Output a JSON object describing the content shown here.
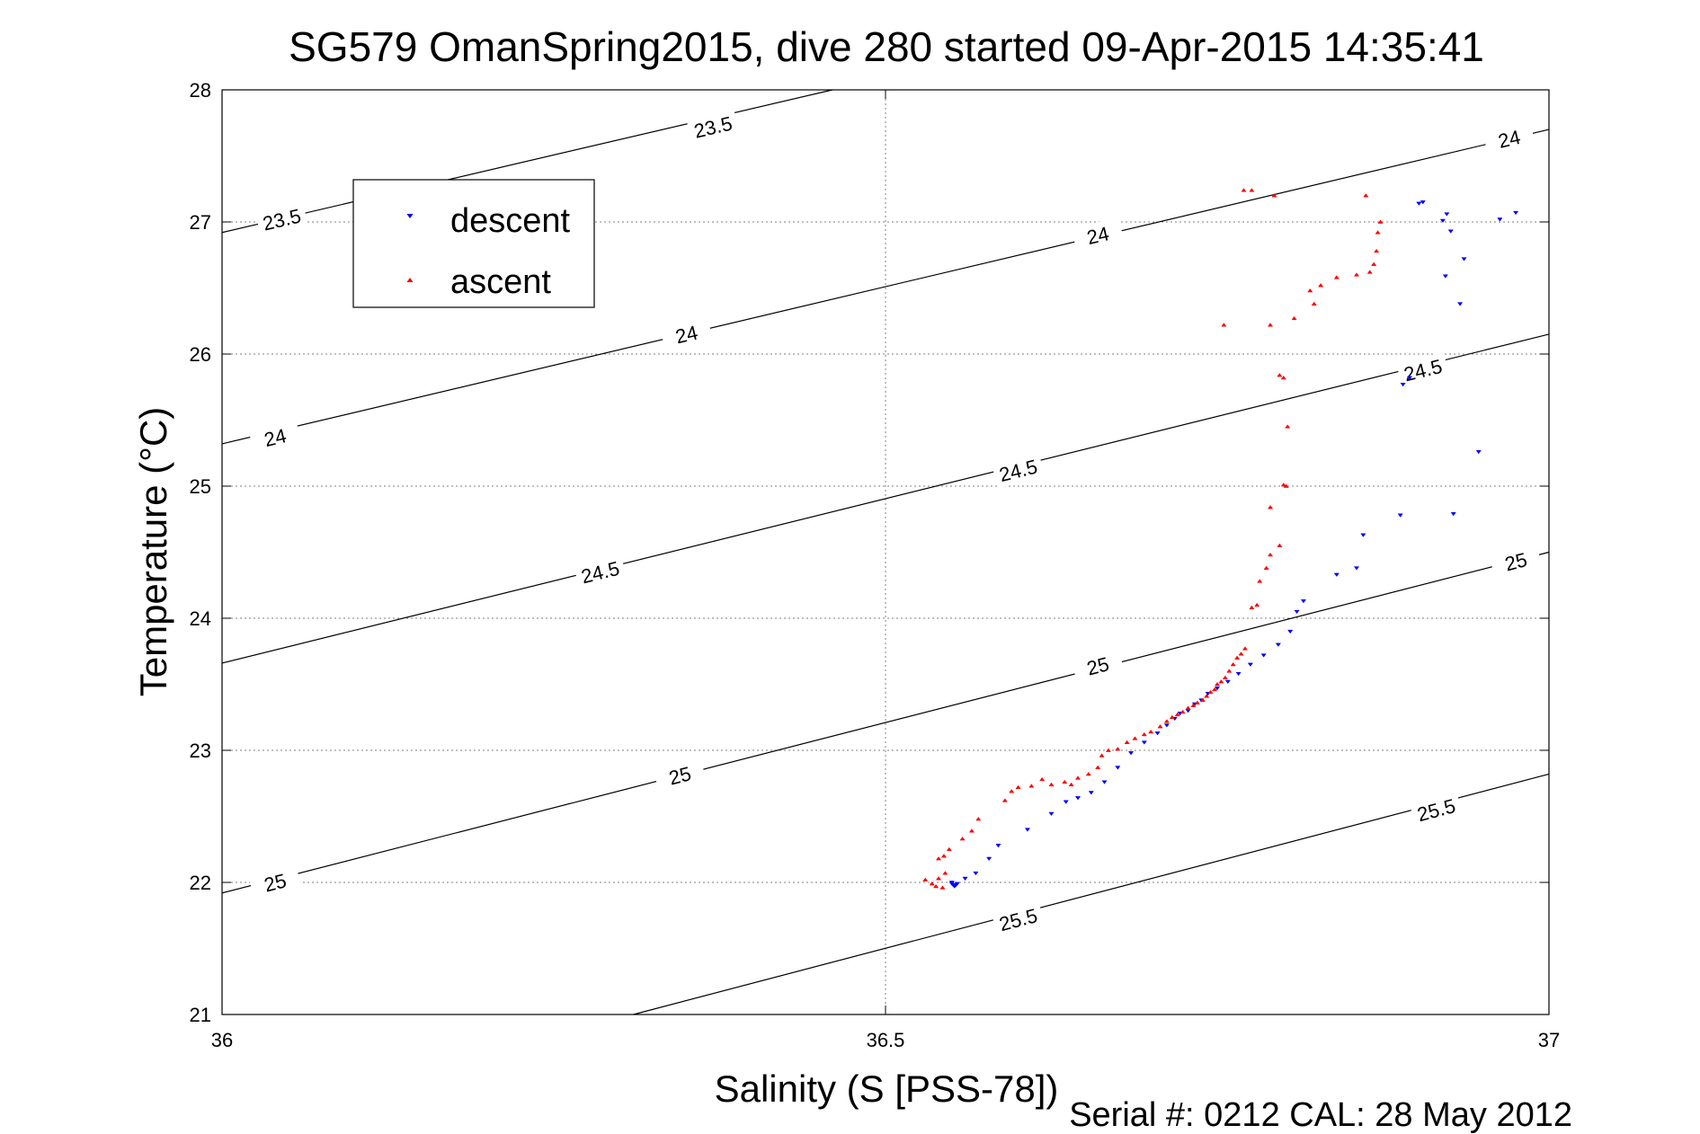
{
  "title": "SG579 OmanSpring2015, dive 280 started 09-Apr-2015 14:35:41",
  "footer": "Serial #: 0212  CAL: 28 May 2012",
  "colors": {
    "descent": "#0000ff",
    "ascent": "#ff0000",
    "contour": "#000000",
    "grid": "#808080"
  },
  "chart_data": {
    "type": "scatter",
    "title": "SG579 OmanSpring2015, dive 280 started 09-Apr-2015 14:35:41",
    "xlabel": "Salinity (S [PSS-78])",
    "ylabel": "Temperature (°C)",
    "xlim": [
      36,
      37
    ],
    "ylim": [
      21,
      28
    ],
    "xticks": [
      36,
      36.5,
      37
    ],
    "xtick_labels": [
      "36",
      "36.5",
      "37"
    ],
    "yticks": [
      21,
      22,
      23,
      24,
      25,
      26,
      27,
      28
    ],
    "ytick_labels": [
      "21",
      "22",
      "23",
      "24",
      "25",
      "26",
      "27",
      "28"
    ],
    "grid": true,
    "legend": {
      "position": "upper-left",
      "entries": [
        "descent",
        "ascent"
      ]
    },
    "contours": [
      {
        "level": "23.5",
        "points": [
          [
            36,
            26.92
          ],
          [
            36.46,
            28.0
          ]
        ],
        "labels": [
          [
            36.045,
            27.02
          ],
          [
            36.37,
            27.72
          ]
        ]
      },
      {
        "level": "24",
        "points": [
          [
            36,
            25.32
          ],
          [
            37,
            27.7
          ]
        ],
        "labels": [
          [
            36.04,
            25.37
          ],
          [
            36.35,
            26.15
          ],
          [
            36.66,
            26.9
          ],
          [
            36.97,
            27.63
          ]
        ]
      },
      {
        "level": "24.5",
        "points": [
          [
            36,
            23.66
          ],
          [
            37,
            26.15
          ]
        ],
        "labels": [
          [
            36.285,
            24.35
          ],
          [
            36.6,
            25.12
          ],
          [
            36.905,
            25.88
          ]
        ]
      },
      {
        "level": "25",
        "points": [
          [
            36,
            21.92
          ],
          [
            37,
            24.5
          ]
        ],
        "labels": [
          [
            36.04,
            22.0
          ],
          [
            36.345,
            22.81
          ],
          [
            36.66,
            23.64
          ],
          [
            36.975,
            24.43
          ]
        ]
      },
      {
        "level": "25.5",
        "points": [
          [
            36.31,
            21.0
          ],
          [
            37,
            22.82
          ]
        ],
        "labels": [
          [
            36.6,
            21.72
          ],
          [
            36.915,
            22.55
          ]
        ]
      }
    ],
    "series": [
      {
        "name": "descent",
        "marker": "triangle-down",
        "points": [
          [
            36.55,
            21.99
          ],
          [
            36.551,
            21.98
          ],
          [
            36.552,
            21.97
          ],
          [
            36.553,
            21.98
          ],
          [
            36.55,
            22.0
          ],
          [
            36.554,
            21.99
          ],
          [
            36.56,
            22.03
          ],
          [
            36.568,
            22.07
          ],
          [
            36.578,
            22.18
          ],
          [
            36.585,
            22.28
          ],
          [
            36.607,
            22.4
          ],
          [
            36.625,
            22.52
          ],
          [
            36.636,
            22.61
          ],
          [
            36.645,
            22.64
          ],
          [
            36.655,
            22.68
          ],
          [
            36.665,
            22.76
          ],
          [
            36.675,
            22.87
          ],
          [
            36.685,
            22.98
          ],
          [
            36.695,
            23.06
          ],
          [
            36.705,
            23.13
          ],
          [
            36.712,
            23.19
          ],
          [
            36.718,
            23.24
          ],
          [
            36.722,
            23.28
          ],
          [
            36.728,
            23.3
          ],
          [
            36.733,
            23.35
          ],
          [
            36.738,
            23.38
          ],
          [
            36.743,
            23.43
          ],
          [
            36.75,
            23.47
          ],
          [
            36.758,
            23.52
          ],
          [
            36.766,
            23.58
          ],
          [
            36.775,
            23.65
          ],
          [
            36.785,
            23.72
          ],
          [
            36.796,
            23.8
          ],
          [
            36.805,
            23.9
          ],
          [
            36.81,
            24.05
          ],
          [
            36.815,
            24.13
          ],
          [
            36.84,
            24.33
          ],
          [
            36.855,
            24.38
          ],
          [
            36.86,
            24.63
          ],
          [
            36.888,
            24.78
          ],
          [
            36.928,
            24.79
          ],
          [
            36.947,
            25.26
          ],
          [
            36.89,
            25.77
          ],
          [
            36.895,
            25.82
          ],
          [
            36.933,
            26.38
          ],
          [
            36.936,
            26.72
          ],
          [
            36.922,
            26.59
          ],
          [
            36.926,
            26.93
          ],
          [
            36.92,
            27.01
          ],
          [
            36.923,
            27.06
          ],
          [
            36.902,
            27.14
          ],
          [
            36.905,
            27.15
          ],
          [
            36.963,
            27.02
          ],
          [
            36.975,
            27.07
          ]
        ]
      },
      {
        "name": "ascent",
        "marker": "triangle-up",
        "points": [
          [
            36.53,
            22.02
          ],
          [
            36.535,
            21.99
          ],
          [
            36.538,
            21.97
          ],
          [
            36.543,
            21.96
          ],
          [
            36.54,
            22.03
          ],
          [
            36.545,
            22.07
          ],
          [
            36.54,
            22.18
          ],
          [
            36.544,
            22.2
          ],
          [
            36.548,
            22.25
          ],
          [
            36.558,
            22.33
          ],
          [
            36.565,
            22.39
          ],
          [
            36.57,
            22.48
          ],
          [
            36.59,
            22.62
          ],
          [
            36.595,
            22.69
          ],
          [
            36.6,
            22.72
          ],
          [
            36.61,
            22.73
          ],
          [
            36.618,
            22.78
          ],
          [
            36.625,
            22.74
          ],
          [
            36.635,
            22.76
          ],
          [
            36.64,
            22.74
          ],
          [
            36.645,
            22.79
          ],
          [
            36.653,
            22.82
          ],
          [
            36.66,
            22.87
          ],
          [
            36.663,
            22.96
          ],
          [
            36.668,
            23.0
          ],
          [
            36.675,
            23.01
          ],
          [
            36.682,
            23.06
          ],
          [
            36.688,
            23.09
          ],
          [
            36.695,
            23.12
          ],
          [
            36.7,
            23.14
          ],
          [
            36.707,
            23.18
          ],
          [
            36.712,
            23.22
          ],
          [
            36.716,
            23.25
          ],
          [
            36.72,
            23.27
          ],
          [
            36.724,
            23.29
          ],
          [
            36.728,
            23.32
          ],
          [
            36.732,
            23.34
          ],
          [
            36.735,
            23.36
          ],
          [
            36.739,
            23.38
          ],
          [
            36.742,
            23.41
          ],
          [
            36.745,
            23.44
          ],
          [
            36.748,
            23.46
          ],
          [
            36.75,
            23.5
          ],
          [
            36.753,
            23.52
          ],
          [
            36.756,
            23.55
          ],
          [
            36.759,
            23.6
          ],
          [
            36.762,
            23.65
          ],
          [
            36.765,
            23.7
          ],
          [
            36.768,
            23.73
          ],
          [
            36.771,
            23.77
          ],
          [
            36.776,
            24.08
          ],
          [
            36.78,
            24.1
          ],
          [
            36.782,
            24.28
          ],
          [
            36.787,
            24.38
          ],
          [
            36.79,
            24.48
          ],
          [
            36.797,
            24.55
          ],
          [
            36.79,
            24.84
          ],
          [
            36.8,
            25.01
          ],
          [
            36.802,
            25.0
          ],
          [
            36.797,
            25.84
          ],
          [
            36.8,
            25.82
          ],
          [
            36.803,
            25.45
          ],
          [
            36.808,
            26.27
          ],
          [
            36.79,
            26.22
          ],
          [
            36.823,
            26.38
          ],
          [
            36.82,
            26.48
          ],
          [
            36.828,
            26.52
          ],
          [
            36.84,
            26.58
          ],
          [
            36.855,
            26.6
          ],
          [
            36.865,
            26.62
          ],
          [
            36.868,
            26.68
          ],
          [
            36.87,
            26.78
          ],
          [
            36.871,
            26.92
          ],
          [
            36.873,
            27.0
          ],
          [
            36.862,
            27.2
          ],
          [
            36.77,
            27.24
          ],
          [
            36.776,
            27.24
          ],
          [
            36.793,
            27.2
          ],
          [
            36.755,
            26.22
          ]
        ]
      }
    ]
  }
}
